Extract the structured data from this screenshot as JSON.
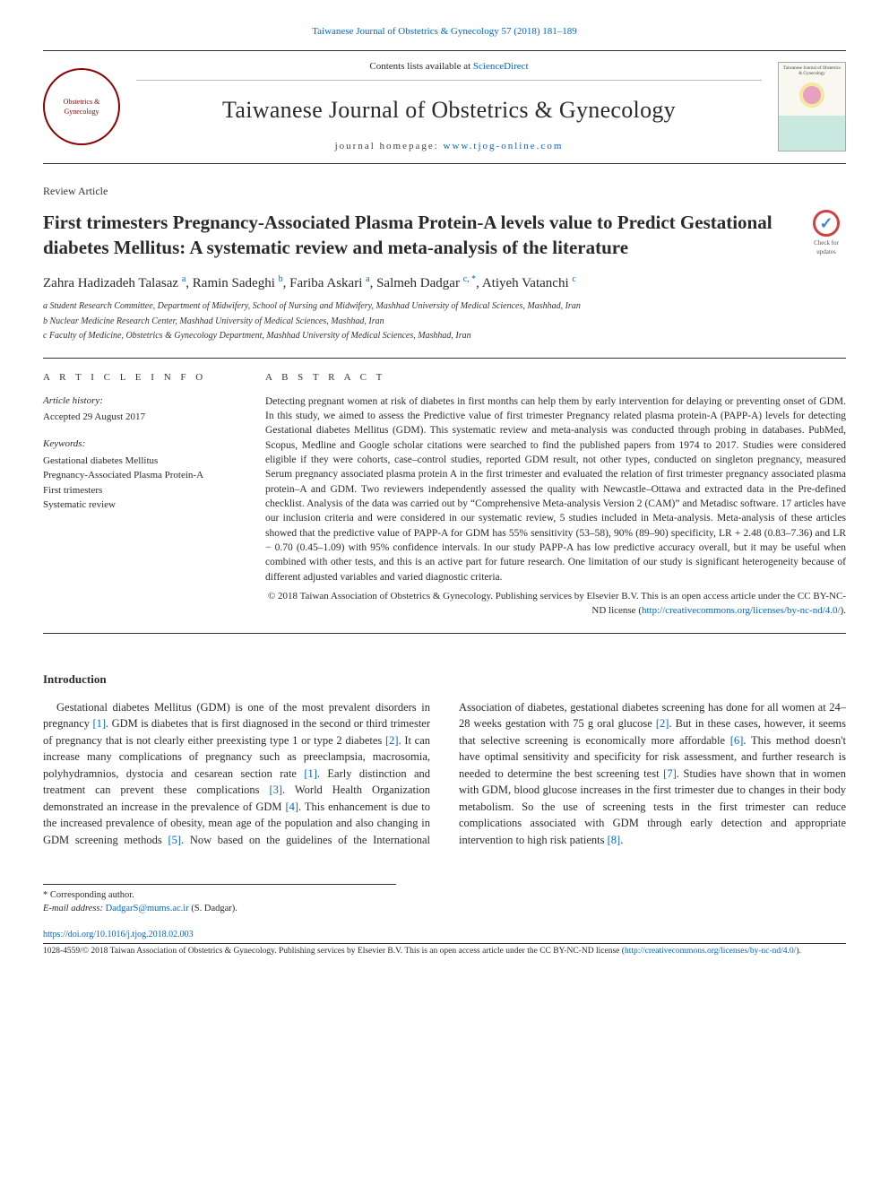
{
  "top_citation": "Taiwanese Journal of Obstetrics & Gynecology 57 (2018) 181–189",
  "header": {
    "contents_text": "Contents lists available at ",
    "contents_link": "ScienceDirect",
    "journal": "Taiwanese Journal of Obstetrics & Gynecology",
    "homepage_label": "journal homepage: ",
    "homepage_link": "www.tjog-online.com",
    "cover_title": "Taiwanese Journal of Obstetrics & Gynecology"
  },
  "article_type": "Review Article",
  "title": "First trimesters Pregnancy-Associated Plasma Protein-A levels value to Predict Gestational diabetes Mellitus: A systematic review and meta-analysis of the literature",
  "check_badge": "Check for updates",
  "authors_html": "Zahra Hadizadeh Talasaz <sup>a</sup>, Ramin Sadeghi <sup>b</sup>, Fariba Askari <sup>a</sup>, Salmeh Dadgar <sup>c, *</sup>, Atiyeh Vatanchi <sup>c</sup>",
  "affils": [
    "a Student Research Committee, Department of Midwifery, School of Nursing and Midwifery, Mashhad University of Medical Sciences, Mashhad, Iran",
    "b Nuclear Medicine Research Center, Mashhad University of Medical Sciences, Mashhad, Iran",
    "c Faculty of Medicine, Obstetrics & Gynecology Department, Mashhad University of Medical Sciences, Mashhad, Iran"
  ],
  "info_head": "A R T I C L E   I N F O",
  "abs_head": "A B S T R A C T",
  "history_label": "Article history:",
  "history_text": "Accepted 29 August 2017",
  "kw_label": "Keywords:",
  "keywords": [
    "Gestational diabetes Mellitus",
    "Pregnancy-Associated Plasma Protein-A",
    "First trimesters",
    "Systematic review"
  ],
  "abstract": "Detecting pregnant women at risk of diabetes in first months can help them by early intervention for delaying or preventing onset of GDM. In this study, we aimed to assess the Predictive value of first trimester Pregnancy related plasma protein-A (PAPP-A) levels for detecting Gestational diabetes Mellitus (GDM). This systematic review and meta-analysis was conducted through probing in databases. PubMed, Scopus, Medline and Google scholar citations were searched to find the published papers from 1974 to 2017. Studies were considered eligible if they were cohorts, case–control studies, reported GDM result, not other types, conducted on singleton pregnancy, measured Serum pregnancy associated plasma protein A in the first trimester and evaluated the relation of first trimester pregnancy associated plasma protein–A and GDM. Two reviewers independently assessed the quality with Newcastle–Ottawa and extracted data in the Pre-defined checklist. Analysis of the data was carried out by “Comprehensive Meta-analysis Version 2 (CAM)” and Metadisc software. 17 articles have our inclusion criteria and were considered in our systematic review, 5 studies included in Meta-analysis. Meta-analysis of these articles showed that the predictive value of PAPP-A for GDM has 55% sensitivity (53–58), 90% (89–90) specificity, LR + 2.48 (0.83–7.36) and LR − 0.70 (0.45–1.09) with 95% confidence intervals. In our study PAPP-A has low predictive accuracy overall, but it may be useful when combined with other tests, and this is an active part for future research. One limitation of our study is significant heterogeneity because of different adjusted variables and varied diagnostic criteria.",
  "copyright": "© 2018 Taiwan Association of Obstetrics & Gynecology. Publishing services by Elsevier B.V. This is an open access article under the CC BY-NC-ND license (",
  "copyright_link": "http://creativecommons.org/licenses/by-nc-nd/4.0/",
  "copyright_close": ").",
  "intro_head": "Introduction",
  "intro_p1_a": "Gestational diabetes Mellitus (GDM) is one of the most prevalent disorders in pregnancy ",
  "intro_p1_b": ". GDM is diabetes that is first diagnosed in the second or third trimester of pregnancy that is not clearly either preexisting type 1 or type 2 diabetes ",
  "intro_p1_c": ". It can increase many complications of pregnancy such as preeclampsia, macrosomia, polyhydramnios, dystocia and cesarean section rate ",
  "intro_p1_d": ". Early distinction and treatment can prevent these complications ",
  "intro_p1_e": ". World Health Organization demonstrated an increase in ",
  "intro_p2_a": "the prevalence of GDM ",
  "intro_p2_b": ". This enhancement is due to the increased prevalence of obesity, mean age of the population and also changing in GDM screening methods ",
  "intro_p2_c": ". Now based on the guidelines of the International Association of diabetes, gestational diabetes screening has done for all women at 24–28 weeks gestation with 75 g oral glucose ",
  "intro_p2_d": ". But in these cases, however, it seems that selective screening is economically more affordable ",
  "intro_p2_e": ". This method doesn't have optimal sensitivity and specificity for risk assessment, and further research is needed to determine the best screening test ",
  "intro_p2_f": ". Studies have shown that in women with GDM, blood glucose increases in the first trimester due to changes in their body metabolism. So the use of screening tests in the first trimester can reduce complications associated with GDM through early detection and appropriate intervention to high risk patients ",
  "intro_p2_g": ".",
  "refs": {
    "r1": "[1]",
    "r2": "[2]",
    "r3": "[3]",
    "r4": "[4]",
    "r5": "[5]",
    "r6": "[6]",
    "r7": "[7]",
    "r8": "[8]"
  },
  "corr_label": "* Corresponding author.",
  "email_label": "E-mail address: ",
  "email": "DadgarS@mums.ac.ir",
  "email_who": " (S. Dadgar).",
  "doi": "https://doi.org/10.1016/j.tjog.2018.02.003",
  "issn_copy": "1028-4559/© 2018 Taiwan Association of Obstetrics & Gynecology. Publishing services by Elsevier B.V. This is an open access article under the CC BY-NC-ND license (",
  "issn_link": "http://creativecommons.org/licenses/by-nc-nd/4.0/",
  "issn_close": ")."
}
